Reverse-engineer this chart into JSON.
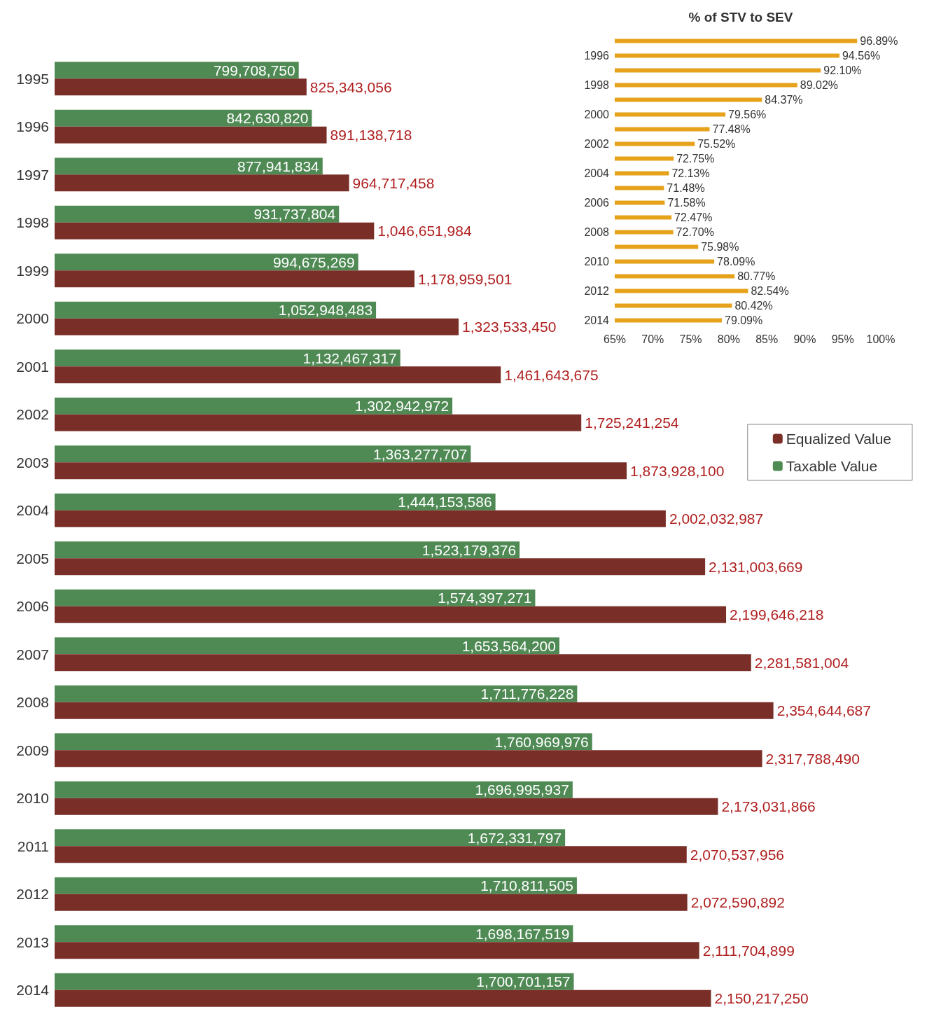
{
  "chart_data": [
    {
      "type": "bar",
      "orientation": "horizontal",
      "legend": "right",
      "grid": false,
      "categories": [
        "1995",
        "1996",
        "1997",
        "1998",
        "1999",
        "2000",
        "2001",
        "2002",
        "2003",
        "2004",
        "2005",
        "2006",
        "2007",
        "2008",
        "2009",
        "2010",
        "2011",
        "2012",
        "2013",
        "2014"
      ],
      "series": [
        {
          "name": "Taxable Value",
          "color": "#4f8a55",
          "values": [
            799708750,
            842630820,
            877941834,
            931737804,
            994675269,
            1052948483,
            1132467317,
            1302942972,
            1363277707,
            1444153586,
            1523179376,
            1574397271,
            1653564200,
            1711776228,
            1760969976,
            1696995937,
            1672331797,
            1710811505,
            1698167519,
            1700701157
          ],
          "value_labels": [
            "799,708,750",
            "842,630,820",
            "877,941,834",
            "931,737,804",
            "994,675,269",
            "1,052,948,483",
            "1,132,467,317",
            "1,302,942,972",
            "1,363,277,707",
            "1,444,153,586",
            "1,523,179,376",
            "1,574,397,271",
            "1,653,564,200",
            "1,711,776,228",
            "1,760,969,976",
            "1,696,995,937",
            "1,672,331,797",
            "1,710,811,505",
            "1,698,167,519",
            "1,700,701,157"
          ]
        },
        {
          "name": "Equalized Value",
          "color": "#7a2e28",
          "values": [
            825343056,
            891138718,
            964717458,
            1046651984,
            1178959501,
            1323533450,
            1461643675,
            1725241254,
            1873928100,
            2002032987,
            2131003669,
            2199646218,
            2281581004,
            2354644687,
            2317788490,
            2173031866,
            2070537956,
            2072590892,
            2111704899,
            2150217250
          ],
          "value_labels": [
            "825,343,056",
            "891,138,718",
            "964,717,458",
            "1,046,651,984",
            "1,178,959,501",
            "1,323,533,450",
            "1,461,643,675",
            "1,725,241,254",
            "1,873,928,100",
            "2,002,032,987",
            "2,131,003,669",
            "2,199,646,218",
            "2,281,581,004",
            "2,354,644,687",
            "2,317,788,490",
            "2,173,031,866",
            "2,070,537,956",
            "2,072,590,892",
            "2,111,704,899",
            "2,150,217,250"
          ]
        }
      ]
    },
    {
      "type": "bar",
      "orientation": "horizontal",
      "title": "% of STV to SEV",
      "grid": false,
      "categories": [
        null,
        "1996",
        null,
        "1998",
        null,
        "2000",
        null,
        "2002",
        null,
        "2004",
        null,
        "2006",
        null,
        "2008",
        null,
        "2010",
        null,
        "2012",
        null,
        "2014"
      ],
      "xlim": [
        65,
        100
      ],
      "xticks": [
        {
          "value": 65,
          "label": "65%"
        },
        {
          "value": 70,
          "label": "70%"
        },
        {
          "value": 75,
          "label": "75%"
        },
        {
          "value": 80,
          "label": "80%"
        },
        {
          "value": 85,
          "label": "85%"
        },
        {
          "value": 90,
          "label": "90%"
        },
        {
          "value": 95,
          "label": "95%"
        },
        {
          "value": 100,
          "label": "100%"
        }
      ],
      "series": [
        {
          "color": "#e6a21a",
          "values": [
            96.89,
            94.56,
            92.1,
            89.02,
            84.37,
            79.56,
            77.48,
            75.52,
            72.75,
            72.13,
            71.48,
            71.58,
            72.47,
            72.7,
            75.98,
            78.09,
            80.77,
            82.54,
            80.42,
            79.09
          ],
          "value_labels": [
            "96.89%",
            "94.56%",
            "92.10%",
            "89.02%",
            "84.37%",
            "79.56%",
            "77.48%",
            "75.52%",
            "72.75%",
            "72.13%",
            "71.48%",
            "71.58%",
            "72.47%",
            "72.70%",
            "75.98%",
            "78.09%",
            "80.77%",
            "82.54%",
            "80.42%",
            "79.09%"
          ]
        }
      ]
    }
  ]
}
